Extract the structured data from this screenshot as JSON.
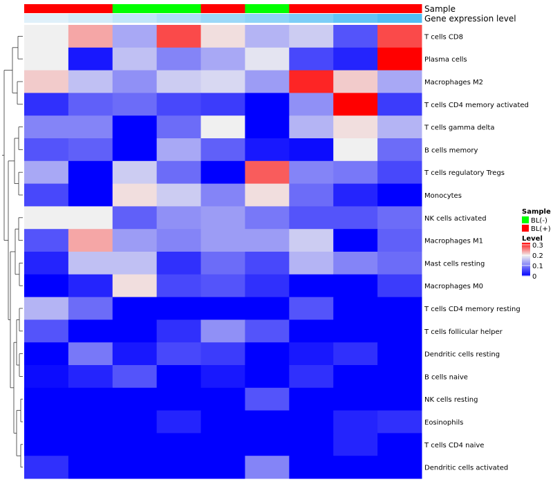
{
  "chart_data": {
    "type": "heatmap",
    "title": "",
    "xlabel": "",
    "ylabel": "",
    "annotation_tracks": [
      {
        "name": "Sample",
        "values": [
          "BL(+)",
          "BL(+)",
          "BL(-)",
          "BL(-)",
          "BL(+)",
          "BL(-)",
          "BL(+)",
          "BL(+)",
          "BL(+)"
        ]
      },
      {
        "name": "Gene expression level",
        "values": [
          0.0,
          0.04,
          0.09,
          0.14,
          0.19,
          0.23,
          0.28,
          0.35,
          0.4
        ]
      }
    ],
    "rows": [
      "T cells CD8",
      "Plasma cells",
      "Macrophages M2",
      "T cells CD4 memory activated",
      "T cells gamma delta",
      "B cells memory",
      "T cells regulatory  Tregs",
      "Monocytes",
      "NK cells activated",
      "Macrophages M1",
      "Mast cells resting",
      "Macrophages M0",
      "T cells CD4 memory resting",
      "T cells follicular helper",
      "Dendritic cells resting",
      "B cells naive",
      "NK cells resting",
      "Eosinophils",
      "T cells CD4 naive",
      "Dendritic cells activated"
    ],
    "columns": 9,
    "values": [
      [
        0.2,
        0.24,
        0.14,
        0.29,
        0.21,
        0.15,
        0.17,
        0.07,
        0.29
      ],
      [
        0.2,
        0.02,
        0.16,
        0.11,
        0.14,
        0.19,
        0.06,
        0.03,
        0.33
      ],
      [
        0.22,
        0.16,
        0.12,
        0.17,
        0.18,
        0.13,
        0.31,
        0.22,
        0.14
      ],
      [
        0.04,
        0.08,
        0.09,
        0.06,
        0.05,
        0.0,
        0.12,
        0.33,
        0.05
      ],
      [
        0.11,
        0.11,
        0.0,
        0.09,
        0.2,
        0.0,
        0.15,
        0.21,
        0.15
      ],
      [
        0.07,
        0.08,
        0.0,
        0.14,
        0.08,
        0.02,
        0.01,
        0.2,
        0.09
      ],
      [
        0.14,
        0.0,
        0.17,
        0.09,
        0.0,
        0.28,
        0.11,
        0.1,
        0.06
      ],
      [
        0.06,
        0.0,
        0.21,
        0.17,
        0.11,
        0.21,
        0.09,
        0.03,
        0.0
      ],
      [
        0.2,
        0.2,
        0.08,
        0.12,
        0.13,
        0.1,
        0.07,
        0.07,
        0.09
      ],
      [
        0.07,
        0.24,
        0.13,
        0.11,
        0.13,
        0.13,
        0.17,
        0.0,
        0.08
      ],
      [
        0.03,
        0.16,
        0.16,
        0.04,
        0.09,
        0.06,
        0.15,
        0.11,
        0.09
      ],
      [
        0.0,
        0.03,
        0.21,
        0.06,
        0.07,
        0.04,
        0.0,
        0.0,
        0.05
      ],
      [
        0.15,
        0.09,
        0.0,
        0.0,
        0.0,
        0.0,
        0.07,
        0.0,
        0.0
      ],
      [
        0.07,
        0.0,
        0.0,
        0.04,
        0.12,
        0.07,
        0.0,
        0.0,
        0.0
      ],
      [
        0.0,
        0.1,
        0.02,
        0.06,
        0.05,
        0.0,
        0.02,
        0.04,
        0.0
      ],
      [
        0.01,
        0.03,
        0.07,
        0.0,
        0.02,
        0.0,
        0.04,
        0.0,
        0.0
      ],
      [
        0.0,
        0.0,
        0.0,
        0.0,
        0.0,
        0.07,
        0.0,
        0.0,
        0.0
      ],
      [
        0.0,
        0.0,
        0.0,
        0.03,
        0.0,
        0.0,
        0.0,
        0.03,
        0.04
      ],
      [
        0.0,
        0.0,
        0.0,
        0.0,
        0.0,
        0.0,
        0.0,
        0.03,
        0.0
      ],
      [
        0.04,
        0.0,
        0.0,
        0.0,
        0.0,
        0.11,
        0.0,
        0.0,
        0.0
      ]
    ],
    "color_scale": {
      "low": "#0000ff",
      "mid": "#f0f0f0",
      "high": "#ff0000",
      "min": 0,
      "mid_value": 0.2,
      "max": 0.33
    },
    "legend": {
      "placement": "right",
      "sample": {
        "title": "Sample",
        "entries": [
          {
            "label": "BL(-)",
            "color": "#00ff00"
          },
          {
            "label": "BL(+)",
            "color": "#ff0000"
          }
        ]
      },
      "level": {
        "title": "Level",
        "ticks": [
          "0.3",
          "0.2",
          "0.1",
          "0"
        ],
        "tick_values": [
          0.3,
          0.2,
          0.1,
          0
        ]
      }
    },
    "dendrogram": "left"
  }
}
